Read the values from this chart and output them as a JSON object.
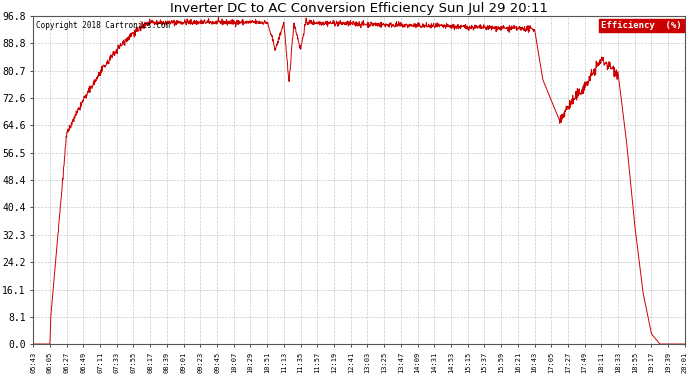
{
  "title": "Inverter DC to AC Conversion Efficiency Sun Jul 29 20:11",
  "copyright": "Copyright 2018 Cartronics.com",
  "legend_label": "Efficiency  (%)",
  "line_color": "#cc0000",
  "background_color": "#ffffff",
  "grid_color": "#bbbbbb",
  "yticks": [
    0.0,
    8.1,
    16.1,
    24.2,
    32.3,
    40.4,
    48.4,
    56.5,
    64.6,
    72.6,
    80.7,
    88.8,
    96.8
  ],
  "ylim": [
    0.0,
    96.8
  ],
  "xtick_labels": [
    "05:43",
    "06:05",
    "06:27",
    "06:49",
    "07:11",
    "07:33",
    "07:55",
    "08:17",
    "08:39",
    "09:01",
    "09:23",
    "09:45",
    "10:07",
    "10:29",
    "10:51",
    "11:13",
    "11:35",
    "11:57",
    "12:19",
    "12:41",
    "13:03",
    "13:25",
    "13:47",
    "14:09",
    "14:31",
    "14:53",
    "15:15",
    "15:37",
    "15:59",
    "16:21",
    "16:43",
    "17:05",
    "17:27",
    "17:49",
    "18:11",
    "18:33",
    "18:55",
    "19:17",
    "19:39",
    "20:01"
  ],
  "n_xticks": 40
}
